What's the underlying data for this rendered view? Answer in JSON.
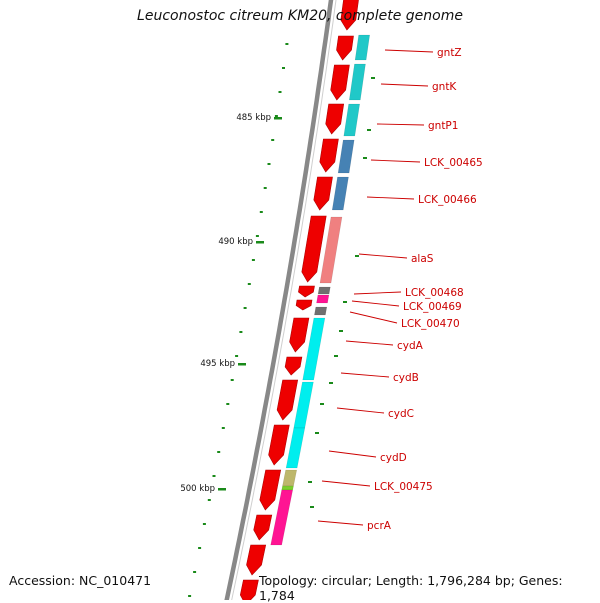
{
  "title": "Leuconostoc citreum KM20, complete genome",
  "footer": {
    "accession": "Accession: NC_010471",
    "topology": "Topology: circular; Length: 1,796,284 bp; Genes: 1,784"
  },
  "scale": {
    "ticks": [
      "485 kbp",
      "490 kbp",
      "495 kbp",
      "500 kbp"
    ]
  },
  "colors": {
    "backbone": "#888888",
    "cds_strand": "#ee0000",
    "label": "#cc0000",
    "tick": "#1a8a1a"
  },
  "genes": [
    {
      "label": "gntZ",
      "color": "#20c8c8"
    },
    {
      "label": "gntK",
      "color": "#20c8c8"
    },
    {
      "label": "gntP1",
      "color": "#20c8c8"
    },
    {
      "label": "LCK_00465",
      "color": "#4682b4"
    },
    {
      "label": "LCK_00466",
      "color": "#4682b4"
    },
    {
      "label": "alaS",
      "color": "#f08080"
    },
    {
      "label": "LCK_00468",
      "color": "#707070"
    },
    {
      "label": "LCK_00469",
      "color": "#ff1493"
    },
    {
      "label": "LCK_00470",
      "color": "#707070"
    },
    {
      "label": "cydA",
      "color": "#00eeee"
    },
    {
      "label": "cydB",
      "color": "#00eeee"
    },
    {
      "label": "cydC",
      "color": "#00eeee"
    },
    {
      "label": "cydD",
      "color": "#bdb76b"
    },
    {
      "label": "LCK_00475",
      "color": "#7ccd2c"
    },
    {
      "label": "pcrA",
      "color": "#ff1493"
    }
  ]
}
